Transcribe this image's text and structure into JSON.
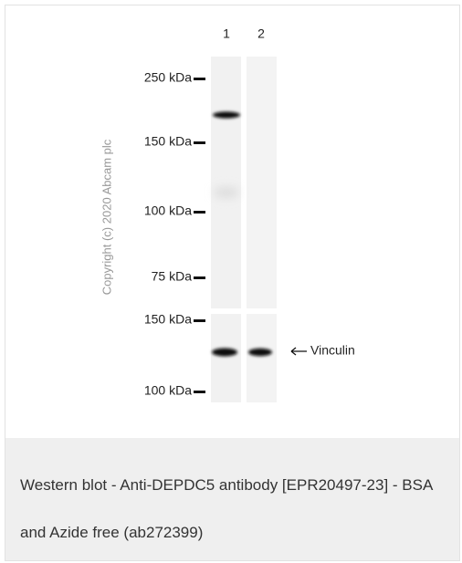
{
  "figure": {
    "lanes": [
      "1",
      "2"
    ],
    "upper_markers": [
      "250 kDa",
      "150 kDa",
      "100 kDa",
      "75 kDa"
    ],
    "lower_markers": [
      "150 kDa",
      "100 kDa"
    ],
    "band_label": "Vinculin",
    "copyright": "Copyright (c) 2020  Abcam plc"
  },
  "caption": "Western blot - Anti-DEPDC5 antibody [EPR20497-23] - BSA and Azide free (ab272399)"
}
